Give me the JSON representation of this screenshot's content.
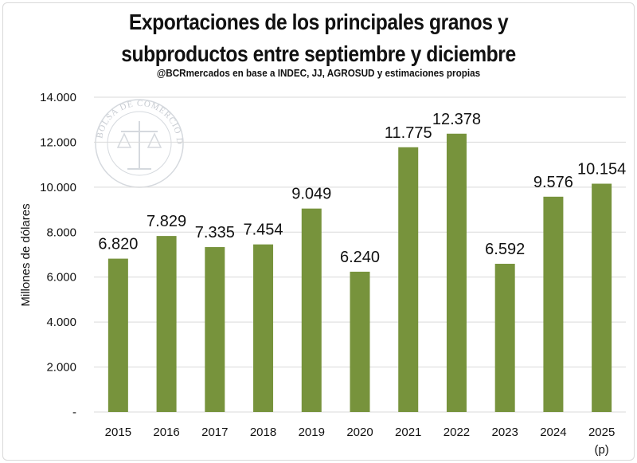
{
  "chart_data": {
    "type": "bar",
    "title_lines": [
      "Exportaciones de los principales granos y",
      "subproductos entre septiembre y diciembre"
    ],
    "subtitle": "@BCRmercados en base a INDEC, JJ, AGROSUD y estimaciones propias",
    "ylabel": "Millones de dólares",
    "xlabel": "",
    "categories": [
      "2015",
      "2016",
      "2017",
      "2018",
      "2019",
      "2020",
      "2021",
      "2022",
      "2023",
      "2024",
      "2025"
    ],
    "category_notes": [
      "",
      "",
      "",
      "",
      "",
      "",
      "",
      "",
      "",
      "",
      "(p)"
    ],
    "values": [
      6820,
      7829,
      7335,
      7454,
      9049,
      6240,
      11775,
      12378,
      6592,
      9576,
      10154
    ],
    "value_labels": [
      "6.820",
      "7.829",
      "7.335",
      "7.454",
      "9.049",
      "6.240",
      "11.775",
      "12.378",
      "6.592",
      "9.576",
      "10.154"
    ],
    "ylim": [
      0,
      14000
    ],
    "yticks": [
      0,
      2000,
      4000,
      6000,
      8000,
      10000,
      12000,
      14000
    ],
    "ytick_labels": [
      "-",
      "2.000",
      "4.000",
      "6.000",
      "8.000",
      "10.000",
      "12.000",
      "14.000"
    ],
    "grid": true,
    "legend": "none",
    "bar_color": "#77933c",
    "grid_color": "#d9d9d9",
    "watermark_text": "BOLSA DE COMERCIO DE ROSARIO"
  }
}
